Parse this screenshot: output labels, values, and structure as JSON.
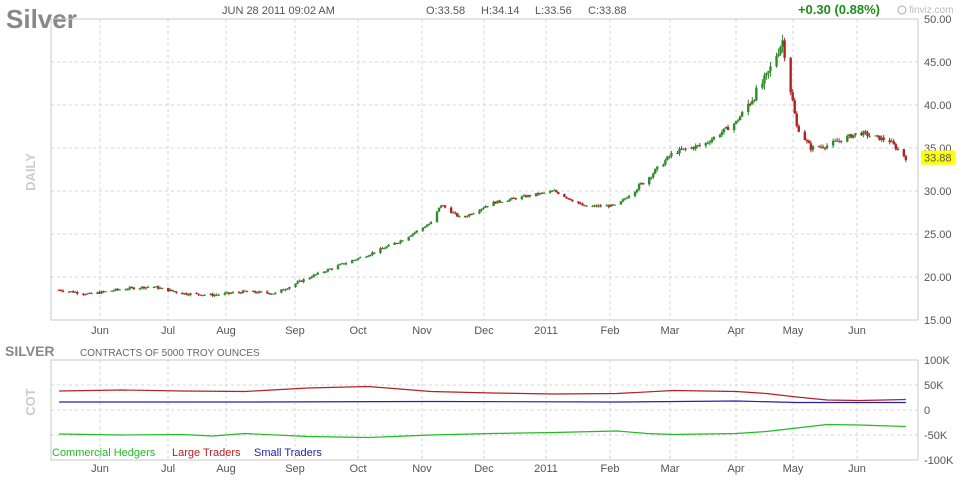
{
  "header": {
    "symbol": "Silver",
    "date_time": "JUN 28 2011 09:02 AM",
    "open": "O:33.58",
    "high": "H:34.14",
    "low": "L:33.56",
    "close": "C:33.88",
    "change": "+0.30 (0.88%)",
    "watermark": "finviz.com"
  },
  "colors": {
    "up": "#2e8b2e",
    "down": "#b22222",
    "grid": "#d6d6d6",
    "price_highlight": "#ffff00",
    "commercial": "#22bb22",
    "large": "#b22222",
    "small": "#2222aa"
  },
  "chart_data": [
    {
      "type": "candlestick",
      "title": "",
      "side_label": "DAILY",
      "x_tick_labels": [
        "Jun",
        "Jul",
        "Aug",
        "Sep",
        "Oct",
        "Nov",
        "Dec",
        "2011",
        "Feb",
        "Mar",
        "Apr",
        "May",
        "Jun"
      ],
      "y_tick_labels": [
        "50.00",
        "45.00",
        "40.00",
        "35.00",
        "30.00",
        "25.00",
        "20.00",
        "15.00"
      ],
      "ylim": [
        15,
        50
      ],
      "last_price": "33.88",
      "grid": true,
      "series": [
        {
          "name": "close",
          "x": [
            "2010-05-05",
            "2010-05-20",
            "2010-06-05",
            "2010-06-20",
            "2010-07-05",
            "2010-07-20",
            "2010-08-05",
            "2010-08-20",
            "2010-09-05",
            "2010-09-20",
            "2010-10-05",
            "2010-10-20",
            "2010-11-05",
            "2010-11-10",
            "2010-11-20",
            "2010-12-05",
            "2010-12-20",
            "2011-01-05",
            "2011-01-20",
            "2011-02-05",
            "2011-02-20",
            "2011-03-05",
            "2011-03-20",
            "2011-04-05",
            "2011-04-20",
            "2011-04-28",
            "2011-05-05",
            "2011-05-12",
            "2011-05-20",
            "2011-06-05",
            "2011-06-20",
            "2011-06-28"
          ],
          "values": [
            18.5,
            18.0,
            18.6,
            18.9,
            18.1,
            17.9,
            18.3,
            18.1,
            19.9,
            21.3,
            22.6,
            24.1,
            26.3,
            28.4,
            26.8,
            28.6,
            29.3,
            30.0,
            28.2,
            28.3,
            31.4,
            34.5,
            35.4,
            38.0,
            43.2,
            47.5,
            37.5,
            35.0,
            35.3,
            36.8,
            35.8,
            33.88
          ]
        }
      ]
    },
    {
      "type": "line",
      "title": "SILVER",
      "subtitle": "CONTRACTS OF 5000 TROY OUNCES",
      "side_label": "COT",
      "x_tick_labels": [
        "Jun",
        "Jul",
        "Aug",
        "Sep",
        "Oct",
        "Nov",
        "Dec",
        "2011",
        "Feb",
        "Mar",
        "Apr",
        "May",
        "Jun"
      ],
      "y_tick_labels": [
        "100K",
        "50K",
        "0",
        "-50K",
        "-100K"
      ],
      "ylim": [
        -100000,
        100000
      ],
      "legend_position": "bottom-left",
      "series": [
        {
          "name": "Commercial Hedgers",
          "x": [
            "2010-05-05",
            "2010-06-05",
            "2010-07-05",
            "2010-07-20",
            "2010-08-05",
            "2010-09-05",
            "2010-10-05",
            "2010-11-05",
            "2010-12-05",
            "2011-01-05",
            "2011-02-05",
            "2011-02-20",
            "2011-03-05",
            "2011-04-05",
            "2011-04-20",
            "2011-05-05",
            "2011-05-20",
            "2011-06-05",
            "2011-06-28"
          ],
          "values": [
            -48000,
            -50000,
            -49000,
            -52000,
            -47000,
            -53000,
            -55000,
            -50000,
            -47000,
            -45000,
            -42000,
            -47000,
            -49000,
            -47000,
            -43000,
            -36000,
            -29000,
            -30000,
            -33000
          ]
        },
        {
          "name": "Large Traders",
          "x": [
            "2010-05-05",
            "2010-06-05",
            "2010-07-05",
            "2010-08-05",
            "2010-09-05",
            "2010-10-05",
            "2010-11-05",
            "2010-12-05",
            "2011-01-05",
            "2011-02-05",
            "2011-03-05",
            "2011-04-05",
            "2011-04-20",
            "2011-05-05",
            "2011-05-20",
            "2011-06-05",
            "2011-06-28"
          ],
          "values": [
            38000,
            40000,
            38000,
            37000,
            44000,
            47000,
            37000,
            34000,
            32000,
            33000,
            39000,
            37000,
            33000,
            26000,
            20000,
            19000,
            21000
          ]
        },
        {
          "name": "Small Traders",
          "x": [
            "2010-05-05",
            "2010-08-05",
            "2010-11-05",
            "2011-02-05",
            "2011-04-05",
            "2011-05-05",
            "2011-06-28"
          ],
          "values": [
            16000,
            16000,
            17000,
            16000,
            18000,
            15000,
            15000
          ]
        }
      ]
    }
  ]
}
